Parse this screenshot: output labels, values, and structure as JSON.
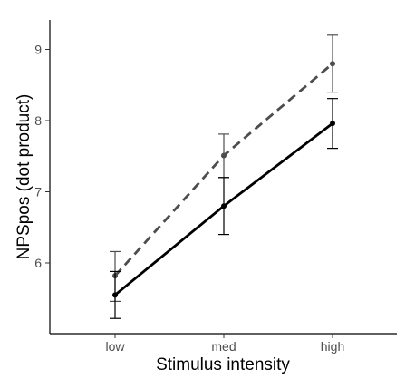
{
  "chart_data": {
    "type": "line",
    "title": "",
    "xlabel": "Stimulus intensity",
    "ylabel": "NPSpos (dot product)",
    "categories": [
      "low",
      "med",
      "high"
    ],
    "yticks": [
      6,
      7,
      8,
      9
    ],
    "ylim": [
      5.0,
      9.4
    ],
    "grid": false,
    "legend": "none",
    "series": [
      {
        "style": "solid",
        "color": "#000000",
        "values": [
          5.55,
          6.8,
          7.96
        ],
        "error_low": [
          5.22,
          6.4,
          7.61
        ],
        "error_high": [
          5.88,
          7.2,
          8.31
        ]
      },
      {
        "style": "dashed",
        "color": "#4d4d4d",
        "values": [
          5.82,
          7.51,
          8.8
        ],
        "error_low": [
          5.46,
          7.2,
          8.4
        ],
        "error_high": [
          6.16,
          7.81,
          9.2
        ]
      }
    ]
  }
}
